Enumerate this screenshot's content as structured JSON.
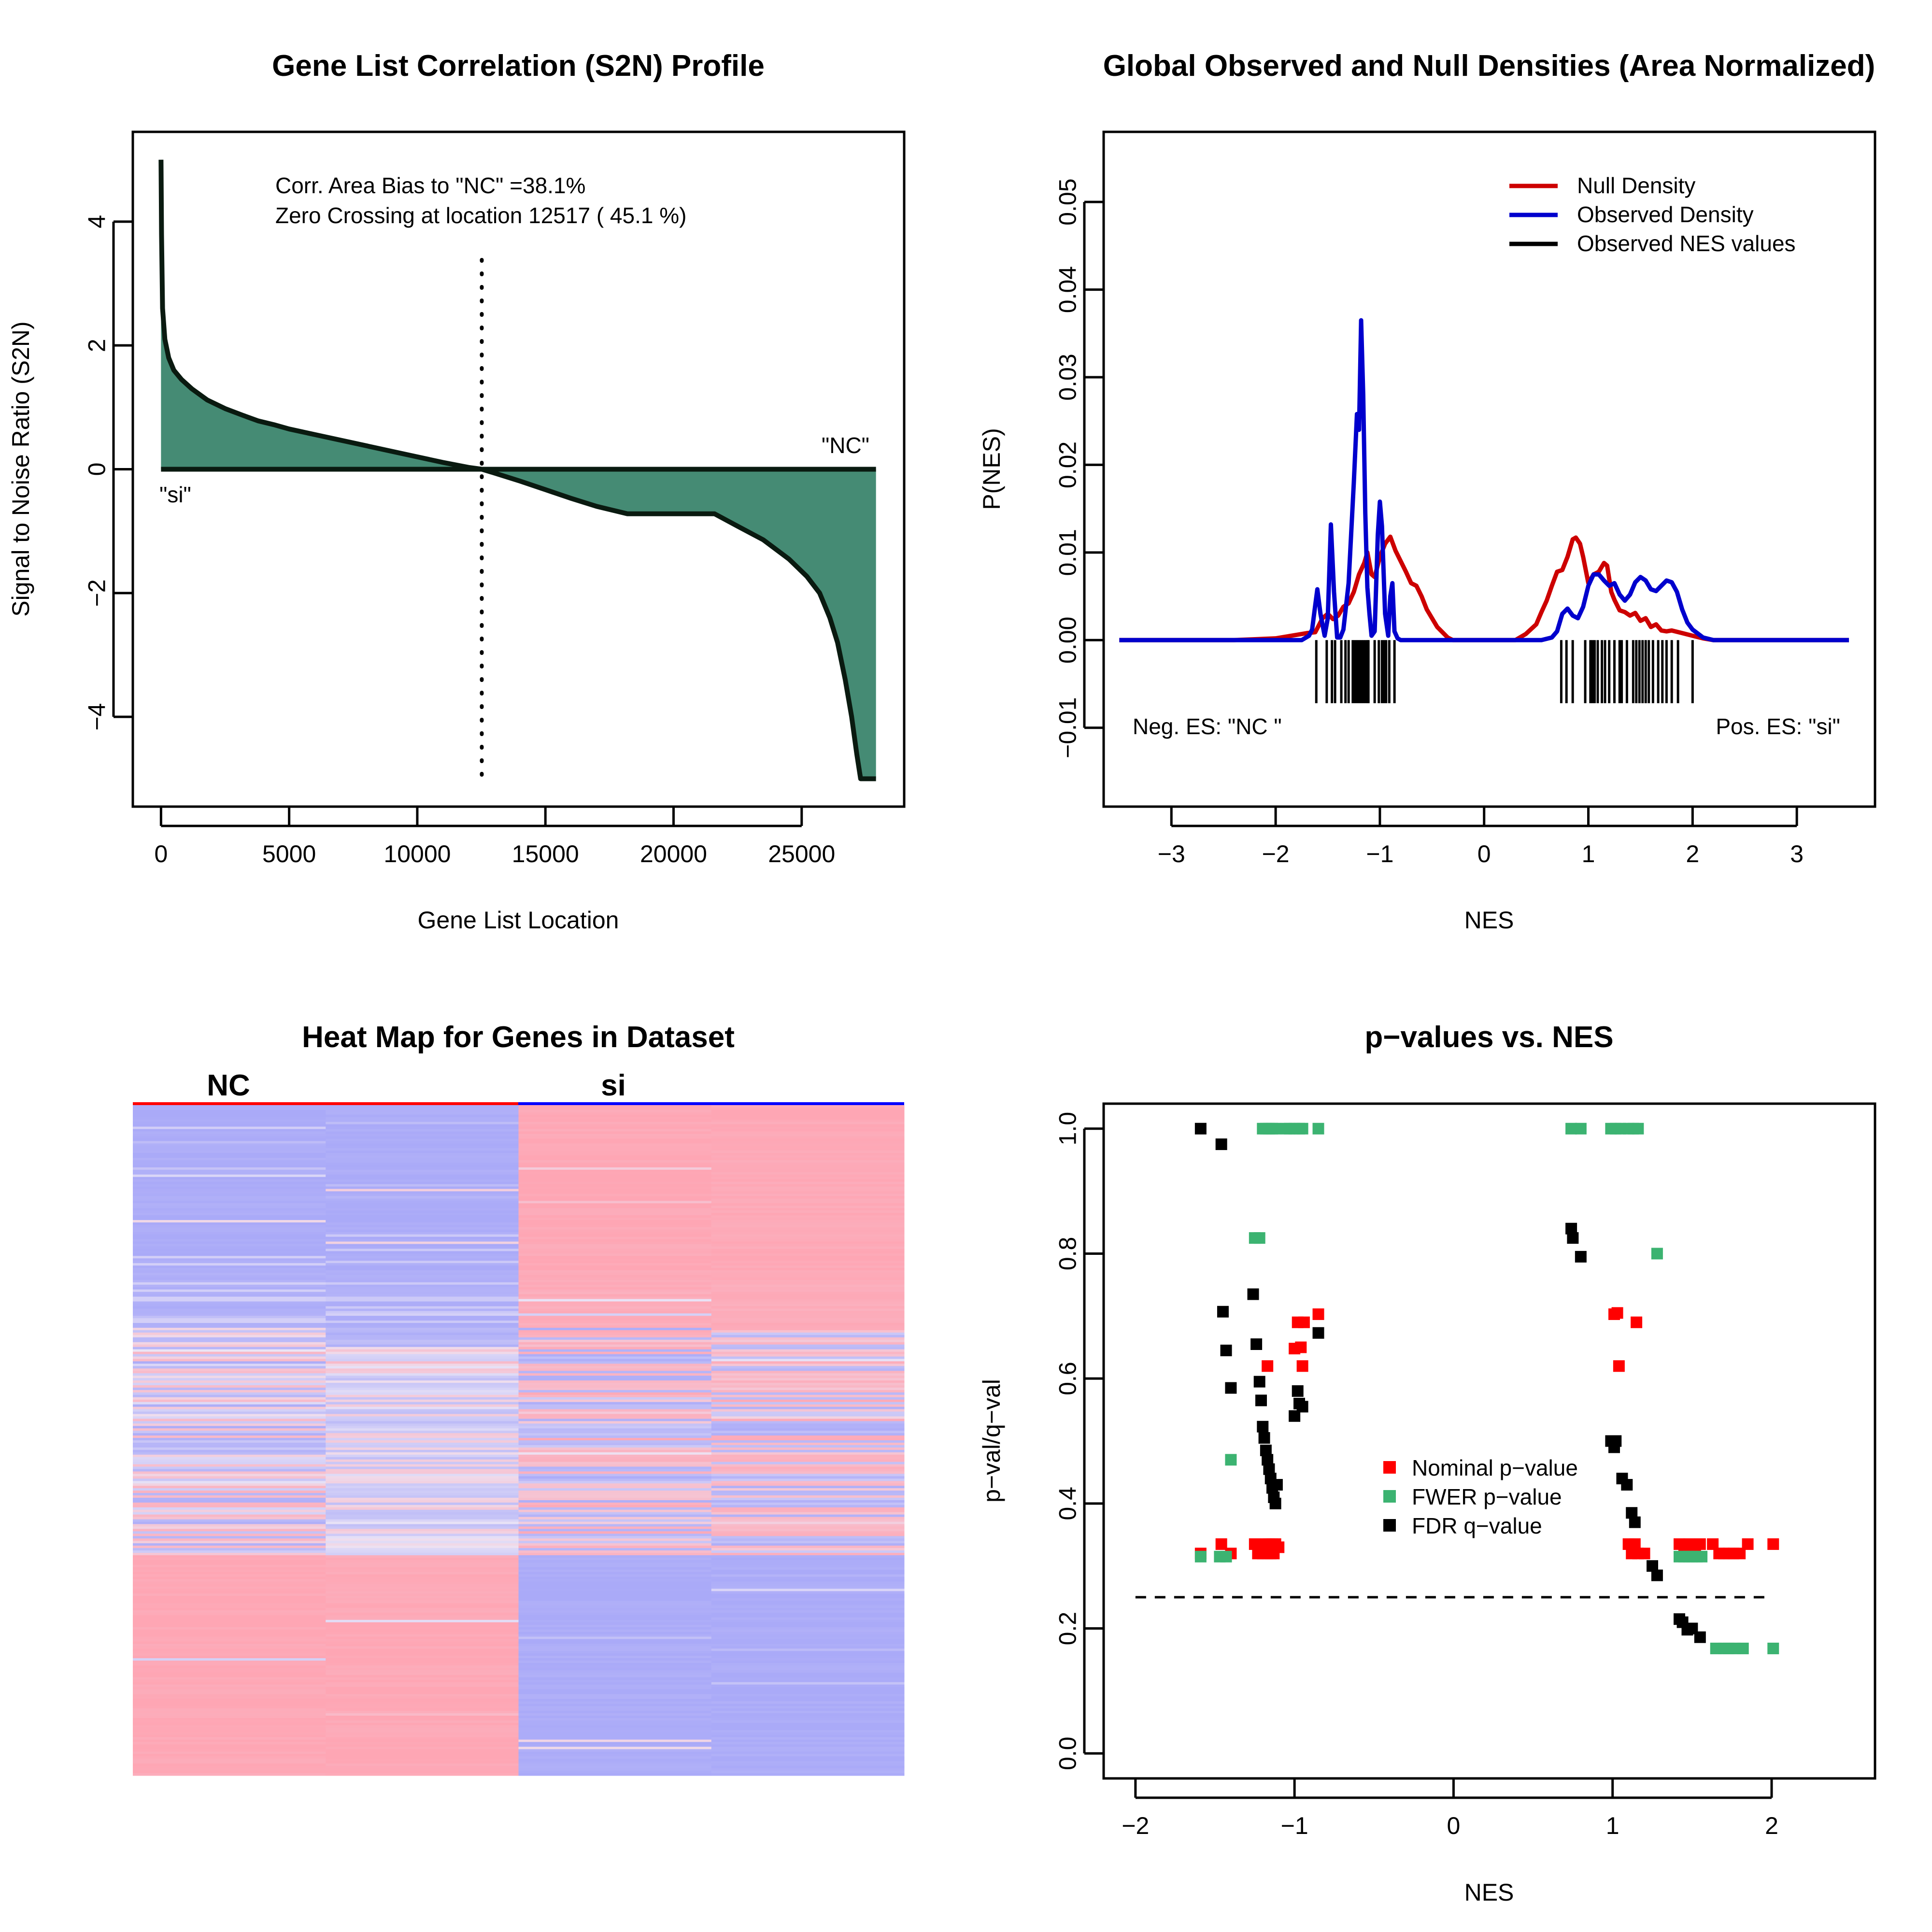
{
  "panels": {
    "s2n": {
      "title": "Gene List Correlation (S2N) Profile",
      "xlabel": "Gene List Location",
      "ylabel": "Signal to Noise Ratio (S2N)",
      "annotation_line1": "Corr. Area Bias to \"NC\" =38.1%",
      "annotation_line2": "Zero Crossing at location  12517  ( 45.1  %)",
      "label_pos_class": "\"si\"",
      "label_neg_class": "\"NC\""
    },
    "density": {
      "title": "Global Observed and Null Densities (Area Normalized)",
      "xlabel": "NES",
      "ylabel": "P(NES)",
      "legend": [
        "Null Density",
        "Observed Density",
        "Observed NES values"
      ],
      "label_neg": "Neg. ES: \"NC \"",
      "label_pos": "Pos. ES: \"si\""
    },
    "heatmap": {
      "title": "Heat Map for Genes in Dataset",
      "group1": "NC",
      "group2": "si"
    },
    "pvalues": {
      "title": "p−values vs. NES",
      "xlabel": "NES",
      "ylabel": "p−val/q−val",
      "legend": [
        "Nominal p−value",
        "FWER p−value",
        "FDR q−value"
      ]
    }
  },
  "chart_data": [
    {
      "type": "area",
      "title": "Gene List Correlation (S2N) Profile",
      "xlabel": "Gene List Location",
      "ylabel": "Signal to Noise Ratio (S2N)",
      "xlim": [
        -1100,
        29000
      ],
      "ylim": [
        -5.45,
        5.45
      ],
      "xticks": [
        0,
        5000,
        10000,
        15000,
        20000,
        25000
      ],
      "yticks": [
        -4,
        -2,
        0,
        2,
        4
      ],
      "zero_crossing": 12517,
      "fill_color": "#458B74",
      "x": [
        0,
        20,
        60,
        150,
        300,
        500,
        800,
        1200,
        1800,
        2500,
        3200,
        3800,
        4400,
        5000,
        6000,
        7000,
        8000,
        9000,
        10000,
        11000,
        12000,
        12517,
        13000,
        14000,
        15000,
        16000,
        17000,
        18200,
        20000,
        21600,
        22500,
        23500,
        24500,
        25200,
        25700,
        26100,
        26400,
        26700,
        26950,
        27150,
        27300,
        27900
      ],
      "y": [
        5.0,
        3.8,
        2.6,
        2.1,
        1.8,
        1.6,
        1.45,
        1.3,
        1.12,
        0.98,
        0.87,
        0.78,
        0.72,
        0.65,
        0.56,
        0.47,
        0.38,
        0.29,
        0.2,
        0.11,
        0.03,
        0.0,
        -0.06,
        -0.19,
        -0.33,
        -0.47,
        -0.6,
        -0.72,
        -0.72,
        -0.72,
        -0.92,
        -1.14,
        -1.45,
        -1.73,
        -2.0,
        -2.4,
        -2.8,
        -3.4,
        -4.0,
        -4.6,
        -5.0,
        -5.0
      ]
    },
    {
      "type": "line",
      "title": "Global Observed and Null Densities (Area Normalized)",
      "xlabel": "NES",
      "ylabel": "P(NES)",
      "xlim": [
        -3.65,
        3.75
      ],
      "ylim": [
        -0.019,
        0.058
      ],
      "xticks": [
        -3,
        -2,
        -1,
        0,
        1,
        2,
        3
      ],
      "yticks": [
        -0.01,
        0.0,
        0.01,
        0.02,
        0.03,
        0.04,
        0.05
      ],
      "legend_position": "top-right",
      "series": [
        {
          "name": "Null Density",
          "color": "#CD0000",
          "x": [
            -3.5,
            -2.4,
            -2.2,
            -2.0,
            -1.8,
            -1.7,
            -1.62,
            -1.55,
            -1.5,
            -1.45,
            -1.4,
            -1.35,
            -1.3,
            -1.25,
            -1.2,
            -1.15,
            -1.12,
            -1.08,
            -1.05,
            -1.0,
            -0.95,
            -0.9,
            -0.85,
            -0.8,
            -0.75,
            -0.7,
            -0.65,
            -0.6,
            -0.55,
            -0.5,
            -0.45,
            -0.35,
            -0.3,
            0.3,
            0.4,
            0.5,
            0.55,
            0.6,
            0.65,
            0.7,
            0.75,
            0.8,
            0.85,
            0.88,
            0.92,
            0.95,
            1.0,
            1.05,
            1.1,
            1.15,
            1.18,
            1.22,
            1.25,
            1.3,
            1.35,
            1.4,
            1.45,
            1.5,
            1.55,
            1.6,
            1.65,
            1.7,
            1.75,
            1.8,
            1.9,
            2.0,
            2.1,
            2.2,
            3.5
          ],
          "y": [
            0.0,
            0.0,
            0.0001,
            0.0002,
            0.0006,
            0.0008,
            0.0009,
            0.0025,
            0.003,
            0.0024,
            0.0028,
            0.0038,
            0.0042,
            0.0055,
            0.0075,
            0.0088,
            0.01,
            0.0075,
            0.0072,
            0.0095,
            0.011,
            0.0118,
            0.0102,
            0.009,
            0.0078,
            0.0065,
            0.0062,
            0.005,
            0.0035,
            0.0025,
            0.0015,
            0.0003,
            0.0,
            0.0,
            0.0007,
            0.0018,
            0.0032,
            0.0045,
            0.0062,
            0.0078,
            0.008,
            0.0095,
            0.0115,
            0.0117,
            0.011,
            0.0095,
            0.0065,
            0.0075,
            0.0078,
            0.0088,
            0.0085,
            0.0055,
            0.0046,
            0.0034,
            0.0032,
            0.0028,
            0.0031,
            0.0022,
            0.0025,
            0.0015,
            0.0018,
            0.0011,
            0.001,
            0.0011,
            0.0008,
            0.0005,
            0.0002,
            0.0,
            0.0
          ]
        },
        {
          "name": "Observed Density",
          "color": "#0000CD",
          "x": [
            -3.5,
            -1.75,
            -1.68,
            -1.65,
            -1.62,
            -1.6,
            -1.57,
            -1.53,
            -1.5,
            -1.47,
            -1.44,
            -1.41,
            -1.38,
            -1.35,
            -1.3,
            -1.25,
            -1.22,
            -1.2,
            -1.18,
            -1.16,
            -1.14,
            -1.12,
            -1.1,
            -1.08,
            -1.05,
            -1.02,
            -1.0,
            -0.98,
            -0.95,
            -0.92,
            -0.9,
            -0.88,
            -0.86,
            -0.83,
            -0.8,
            -0.7,
            0.3,
            0.55,
            0.65,
            0.7,
            0.75,
            0.8,
            0.85,
            0.9,
            0.95,
            1.0,
            1.05,
            1.1,
            1.15,
            1.2,
            1.25,
            1.3,
            1.35,
            1.4,
            1.45,
            1.5,
            1.55,
            1.6,
            1.65,
            1.7,
            1.75,
            1.8,
            1.85,
            1.9,
            1.95,
            2.0,
            2.1,
            2.2,
            3.5
          ],
          "y": [
            0.0,
            0.0,
            0.0005,
            0.0012,
            0.004,
            0.0058,
            0.003,
            0.0005,
            0.0025,
            0.0132,
            0.0055,
            0.0003,
            0.0003,
            0.0012,
            0.0065,
            0.018,
            0.0258,
            0.024,
            0.0365,
            0.028,
            0.0145,
            0.006,
            0.003,
            0.0005,
            0.001,
            0.012,
            0.0158,
            0.013,
            0.003,
            0.0005,
            0.005,
            0.0065,
            0.001,
            0.0002,
            0.0,
            0.0,
            0.0,
            0.0,
            0.0003,
            0.001,
            0.003,
            0.0036,
            0.0028,
            0.0025,
            0.0038,
            0.0062,
            0.0075,
            0.0075,
            0.0068,
            0.0062,
            0.0065,
            0.0052,
            0.0045,
            0.0052,
            0.0066,
            0.0072,
            0.0068,
            0.0058,
            0.0056,
            0.0062,
            0.0068,
            0.0066,
            0.0055,
            0.0035,
            0.002,
            0.0012,
            0.0003,
            0.0,
            0.0
          ]
        }
      ],
      "rug": {
        "name": "Observed NES values",
        "color": "#000000",
        "x": [
          -1.61,
          -1.51,
          -1.46,
          -1.43,
          -1.37,
          -1.33,
          -1.3,
          -1.26,
          -1.24,
          -1.22,
          -1.2,
          -1.18,
          -1.16,
          -1.14,
          -1.12,
          -1.11,
          -1.05,
          -1.01,
          -0.98,
          -0.96,
          -0.94,
          -0.91,
          -0.86,
          0.74,
          0.79,
          0.85,
          0.97,
          1.02,
          1.04,
          1.06,
          1.09,
          1.13,
          1.16,
          1.2,
          1.25,
          1.3,
          1.32,
          1.37,
          1.43,
          1.46,
          1.49,
          1.52,
          1.55,
          1.58,
          1.62,
          1.67,
          1.71,
          1.75,
          1.8,
          1.86,
          2.0
        ]
      }
    },
    {
      "type": "heatmap",
      "title": "Heat Map for Genes in Dataset",
      "groups": [
        "NC",
        "si"
      ],
      "columns": 4,
      "colors": {
        "low": "#aaaaf8",
        "high": "#fea6b4"
      }
    },
    {
      "type": "scatter",
      "title": "p−values vs. NES",
      "xlabel": "NES",
      "ylabel": "p−val/q−val",
      "xlim": [
        -2.2,
        2.65
      ],
      "ylim": [
        -0.04,
        1.04
      ],
      "xticks": [
        -2,
        -1,
        0,
        1,
        2
      ],
      "yticks": [
        0.0,
        0.2,
        0.4,
        0.6,
        0.8,
        1.0
      ],
      "threshold": 0.25,
      "threshold_xrange": [
        -2.0,
        2.0
      ],
      "legend_position": "center",
      "series": [
        {
          "name": "Nominal p−value",
          "color": "#FF0000",
          "x": [
            -1.59,
            -1.46,
            -1.4,
            -1.25,
            -1.23,
            -1.21,
            -1.2,
            -1.18,
            -1.17,
            -1.16,
            -1.15,
            -1.14,
            -1.13,
            -1.12,
            -1.1,
            -1.17,
            -1.0,
            -0.98,
            -0.95,
            -0.96,
            -0.94,
            -0.85,
            1.01,
            1.03,
            1.04,
            1.1,
            1.15,
            1.12,
            1.14,
            1.16,
            1.2,
            1.42,
            1.45,
            1.48,
            1.52,
            1.55,
            1.63,
            1.67,
            1.7,
            1.73,
            1.76,
            1.8,
            1.85,
            2.01
          ],
          "y": [
            0.32,
            0.335,
            0.32,
            0.335,
            0.32,
            0.33,
            0.32,
            0.335,
            0.32,
            0.335,
            0.32,
            0.335,
            0.32,
            0.335,
            0.33,
            0.62,
            0.648,
            0.69,
            0.62,
            0.65,
            0.69,
            0.703,
            0.703,
            0.705,
            0.62,
            0.335,
            0.69,
            0.32,
            0.335,
            0.32,
            0.32,
            0.335,
            0.32,
            0.335,
            0.32,
            0.335,
            0.335,
            0.32,
            0.32,
            0.32,
            0.32,
            0.32,
            0.335,
            0.335
          ]
        },
        {
          "name": "FWER p−value",
          "color": "#3CB371",
          "x": [
            -1.59,
            -1.47,
            -1.43,
            -1.25,
            -1.22,
            -1.2,
            -1.18,
            -1.16,
            -1.14,
            -1.12,
            -1.05,
            -1.03,
            -1.0,
            -0.97,
            -0.95,
            -0.85,
            -1.4,
            0.74,
            0.8,
            0.99,
            1.02,
            1.05,
            1.1,
            1.13,
            1.16,
            1.28,
            1.42,
            1.45,
            1.48,
            1.5,
            1.53,
            1.56,
            1.65,
            1.7,
            1.73,
            1.77,
            1.82,
            2.01
          ],
          "y": [
            0.315,
            0.315,
            0.315,
            0.825,
            0.825,
            1.0,
            1.0,
            1.0,
            1.0,
            1.0,
            1.0,
            1.0,
            1.0,
            1.0,
            1.0,
            1.0,
            0.47,
            1.0,
            1.0,
            1.0,
            1.0,
            1.0,
            1.0,
            1.0,
            1.0,
            0.8,
            0.315,
            0.315,
            0.315,
            0.315,
            0.315,
            0.315,
            0.168,
            0.168,
            0.168,
            0.168,
            0.168,
            0.168
          ]
        },
        {
          "name": "FDR q−value",
          "color": "#000000",
          "x": [
            -1.59,
            -1.46,
            -1.45,
            -1.43,
            -1.4,
            -1.26,
            -1.24,
            -1.22,
            -1.21,
            -1.2,
            -1.19,
            -1.18,
            -1.17,
            -1.16,
            -1.15,
            -1.14,
            -1.13,
            -1.12,
            -1.11,
            -1.0,
            -0.98,
            -0.97,
            -0.95,
            -0.85,
            0.74,
            0.75,
            0.8,
            0.99,
            1.01,
            1.02,
            1.06,
            1.09,
            1.12,
            1.14,
            1.25,
            1.28,
            1.42,
            1.44,
            1.47,
            1.5,
            1.55
          ],
          "y": [
            1.0,
            0.975,
            0.707,
            0.645,
            0.585,
            0.735,
            0.655,
            0.595,
            0.565,
            0.523,
            0.505,
            0.485,
            0.47,
            0.455,
            0.44,
            0.425,
            0.41,
            0.4,
            0.43,
            0.54,
            0.58,
            0.56,
            0.555,
            0.673,
            0.84,
            0.825,
            0.795,
            0.5,
            0.49,
            0.5,
            0.44,
            0.43,
            0.385,
            0.37,
            0.3,
            0.285,
            0.215,
            0.21,
            0.198,
            0.2,
            0.186
          ]
        }
      ]
    }
  ]
}
